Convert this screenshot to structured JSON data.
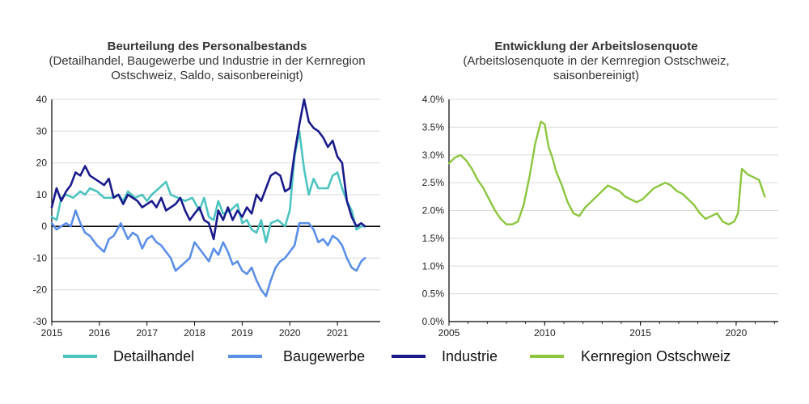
{
  "chart_data": [
    {
      "type": "line",
      "title": "Beurteilung des Personalbestands",
      "subtitle": [
        "(Detailhandel, Baugewerbe und Industrie in der Kernregion",
        "Ostschweiz, Saldo, saisonbereinigt)"
      ],
      "xlim": [
        2015,
        2021.9
      ],
      "ylim": [
        -30,
        40
      ],
      "x_ticks": [
        2015,
        2016,
        2017,
        2018,
        2019,
        2020,
        2021
      ],
      "y_ticks": [
        -30,
        -20,
        -10,
        0,
        10,
        20,
        30,
        40
      ],
      "grid": "horizontal",
      "series": [
        {
          "name": "Detailhandel",
          "color": "#4dc4c0",
          "x": [
            2015.0,
            2015.1,
            2015.2,
            2015.3,
            2015.45,
            2015.6,
            2015.7,
            2015.8,
            2015.95,
            2016.1,
            2016.25,
            2016.4,
            2016.5,
            2016.6,
            2016.75,
            2016.9,
            2017.0,
            2017.1,
            2017.25,
            2017.4,
            2017.5,
            2017.65,
            2017.8,
            2017.95,
            2018.1,
            2018.2,
            2018.3,
            2018.4,
            2018.5,
            2018.6,
            2018.75,
            2018.9,
            2019.0,
            2019.1,
            2019.2,
            2019.3,
            2019.4,
            2019.5,
            2019.6,
            2019.75,
            2019.9,
            2020.0,
            2020.1,
            2020.2,
            2020.3,
            2020.4,
            2020.5,
            2020.6,
            2020.7,
            2020.8,
            2020.9,
            2021.0,
            2021.1,
            2021.2,
            2021.3,
            2021.4,
            2021.5,
            2021.58
          ],
          "values": [
            3,
            2,
            9,
            10,
            9,
            11,
            10,
            12,
            11,
            9,
            9,
            10,
            8,
            11,
            9,
            10,
            8,
            10,
            12,
            14,
            10,
            9,
            8,
            9,
            5,
            9,
            3,
            2,
            8,
            4,
            5,
            7,
            1,
            2,
            -1,
            -2,
            2,
            -5,
            1,
            2,
            0,
            5,
            22,
            30,
            18,
            10,
            15,
            12,
            12,
            12,
            16,
            17,
            12,
            8,
            5,
            -1,
            0,
            0
          ]
        },
        {
          "name": "Baugewerbe",
          "color": "#5b8fe8",
          "x": [
            2015.0,
            2015.1,
            2015.2,
            2015.3,
            2015.4,
            2015.5,
            2015.6,
            2015.7,
            2015.8,
            2015.95,
            2016.1,
            2016.2,
            2016.3,
            2016.45,
            2016.6,
            2016.7,
            2016.8,
            2016.9,
            2017.0,
            2017.1,
            2017.2,
            2017.3,
            2017.4,
            2017.5,
            2017.6,
            2017.75,
            2017.9,
            2018.0,
            2018.1,
            2018.2,
            2018.3,
            2018.4,
            2018.5,
            2018.6,
            2018.7,
            2018.8,
            2018.9,
            2019.0,
            2019.1,
            2019.2,
            2019.3,
            2019.4,
            2019.5,
            2019.6,
            2019.7,
            2019.8,
            2019.9,
            2020.0,
            2020.1,
            2020.2,
            2020.3,
            2020.4,
            2020.5,
            2020.6,
            2020.7,
            2020.8,
            2020.9,
            2021.0,
            2021.1,
            2021.2,
            2021.3,
            2021.4,
            2021.5,
            2021.58
          ],
          "values": [
            1,
            -1,
            0,
            1,
            0,
            5,
            1,
            -2,
            -3,
            -6,
            -8,
            -4,
            -3,
            1,
            -4,
            -2,
            -3,
            -7,
            -4,
            -3,
            -5,
            -6,
            -8,
            -10,
            -14,
            -12,
            -10,
            -5,
            -7,
            -9,
            -11,
            -7,
            -9,
            -5,
            -8,
            -12,
            -11,
            -14,
            -15,
            -13,
            -17,
            -20,
            -22,
            -17,
            -13,
            -11,
            -10,
            -8,
            -6,
            1,
            1,
            1,
            -1,
            -5,
            -4,
            -6,
            -3,
            -4,
            -6,
            -10,
            -13,
            -14,
            -11,
            -10
          ]
        },
        {
          "name": "Industrie",
          "color": "#1a1a8c",
          "x": [
            2015.0,
            2015.1,
            2015.2,
            2015.3,
            2015.4,
            2015.5,
            2015.6,
            2015.7,
            2015.8,
            2015.9,
            2016.0,
            2016.1,
            2016.2,
            2016.3,
            2016.4,
            2016.5,
            2016.6,
            2016.7,
            2016.8,
            2016.9,
            2017.0,
            2017.1,
            2017.2,
            2017.3,
            2017.4,
            2017.5,
            2017.6,
            2017.7,
            2017.8,
            2017.9,
            2018.0,
            2018.1,
            2018.2,
            2018.3,
            2018.4,
            2018.5,
            2018.6,
            2018.7,
            2018.8,
            2018.9,
            2019.0,
            2019.1,
            2019.2,
            2019.3,
            2019.4,
            2019.5,
            2019.6,
            2019.7,
            2019.8,
            2019.9,
            2020.0,
            2020.1,
            2020.2,
            2020.3,
            2020.4,
            2020.5,
            2020.6,
            2020.7,
            2020.8,
            2020.9,
            2021.0,
            2021.1,
            2021.2,
            2021.3,
            2021.4,
            2021.5,
            2021.58
          ],
          "values": [
            6,
            12,
            8,
            11,
            13,
            17,
            16,
            19,
            16,
            15,
            14,
            13,
            15,
            9,
            10,
            7,
            10,
            9,
            8,
            6,
            7,
            8,
            6,
            9,
            5,
            6,
            7,
            9,
            5,
            2,
            4,
            6,
            2,
            1,
            -4,
            5,
            2,
            6,
            2,
            5,
            3,
            6,
            4,
            10,
            8,
            12,
            16,
            17,
            16,
            11,
            12,
            23,
            32,
            40,
            33,
            31,
            30,
            28,
            25,
            27,
            22,
            20,
            8,
            3,
            0,
            1,
            0
          ]
        }
      ]
    },
    {
      "type": "line",
      "title": "Entwicklung der Arbeitslosenquote",
      "subtitle": [
        "(Arbeitslosenquote in der Kernregion Ostschweiz,",
        "saisonbereinigt)"
      ],
      "xlim": [
        2005,
        2022.2
      ],
      "ylim": [
        0.0,
        4.0
      ],
      "x_ticks": [
        2005,
        2010,
        2015,
        2020
      ],
      "y_ticks": [
        "0.0%",
        "0.5%",
        "1.0%",
        "1.5%",
        "2.0%",
        "2.5%",
        "3.0%",
        "3.5%",
        "4.0%"
      ],
      "grid": "horizontal",
      "series": [
        {
          "name": "Kernregion Ostschweiz",
          "color": "#8cc63f",
          "x": [
            2005.0,
            2005.3,
            2005.6,
            2005.9,
            2006.2,
            2006.5,
            2006.8,
            2007.1,
            2007.4,
            2007.7,
            2008.0,
            2008.3,
            2008.6,
            2008.9,
            2009.2,
            2009.5,
            2009.8,
            2010.0,
            2010.2,
            2010.4,
            2010.6,
            2010.9,
            2011.2,
            2011.5,
            2011.8,
            2012.1,
            2012.4,
            2012.7,
            2013.0,
            2013.3,
            2013.6,
            2013.9,
            2014.2,
            2014.5,
            2014.8,
            2015.1,
            2015.4,
            2015.7,
            2016.0,
            2016.3,
            2016.6,
            2016.9,
            2017.2,
            2017.5,
            2017.8,
            2018.1,
            2018.4,
            2018.7,
            2019.0,
            2019.3,
            2019.6,
            2019.9,
            2020.1,
            2020.3,
            2020.6,
            2020.9,
            2021.2,
            2021.5
          ],
          "values": [
            2.85,
            2.95,
            3.0,
            2.9,
            2.75,
            2.55,
            2.4,
            2.2,
            2.0,
            1.85,
            1.75,
            1.75,
            1.8,
            2.1,
            2.6,
            3.2,
            3.6,
            3.55,
            3.15,
            2.95,
            2.7,
            2.45,
            2.15,
            1.95,
            1.9,
            2.05,
            2.15,
            2.25,
            2.35,
            2.45,
            2.4,
            2.35,
            2.25,
            2.2,
            2.15,
            2.2,
            2.3,
            2.4,
            2.45,
            2.5,
            2.45,
            2.35,
            2.3,
            2.2,
            2.1,
            1.95,
            1.85,
            1.9,
            1.95,
            1.8,
            1.75,
            1.8,
            1.95,
            2.75,
            2.65,
            2.6,
            2.55,
            2.25
          ]
        }
      ]
    }
  ],
  "legend": {
    "left": [
      {
        "label": "Detailhandel",
        "color": "#4dc4c0"
      },
      {
        "label": "Baugewerbe",
        "color": "#5b8fe8"
      },
      {
        "label": "Industrie",
        "color": "#1a1a8c"
      }
    ],
    "right": [
      {
        "label": "Kernregion Ostschweiz",
        "color": "#8cc63f"
      }
    ]
  }
}
